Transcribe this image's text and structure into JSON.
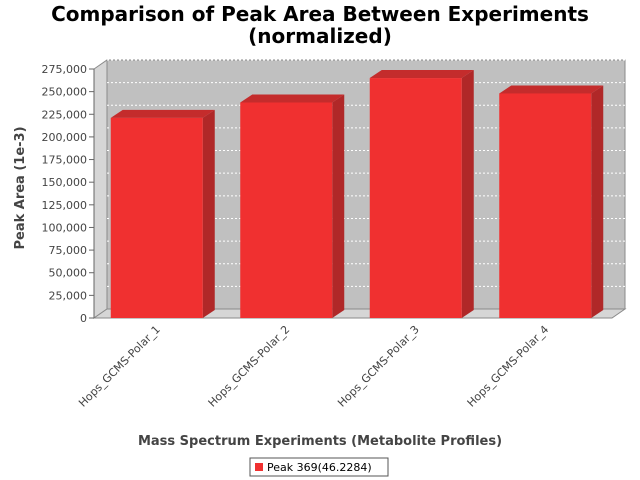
{
  "chart_data": {
    "type": "bar",
    "title_lines": [
      "Comparison of Peak Area Between Experiments",
      "(normalized)"
    ],
    "xlabel": "Mass Spectrum Experiments (Metabolite Profiles)",
    "ylabel": "Peak Area (1e-3)",
    "categories": [
      "Hops_GCMS-Polar_1",
      "Hops_GCMS-Polar_2",
      "Hops_GCMS-Polar_3",
      "Hops_GCMS-Polar_4"
    ],
    "series": [
      {
        "name": "Peak 369(46.2284)",
        "values": [
          221000,
          238000,
          265000,
          248000
        ]
      }
    ],
    "ylim": [
      0,
      275000
    ],
    "yticks": [
      0,
      25000,
      50000,
      75000,
      100000,
      125000,
      150000,
      175000,
      200000,
      225000,
      250000,
      275000
    ],
    "ytick_labels": [
      "0",
      "25,000",
      "50,000",
      "75,000",
      "100,000",
      "125,000",
      "150,000",
      "175,000",
      "200,000",
      "225,000",
      "250,000",
      "275,000"
    ],
    "grid": true,
    "style": "3d",
    "legend_position": "bottom",
    "colors": {
      "bar_front": "#f03030",
      "bar_top": "#c42c2c",
      "bar_side": "#b02828",
      "plot_background": "#c0c0c0",
      "wall_side": "#d6d6d6",
      "floor": "#d6d6d6",
      "grid": "#ffffff"
    }
  }
}
